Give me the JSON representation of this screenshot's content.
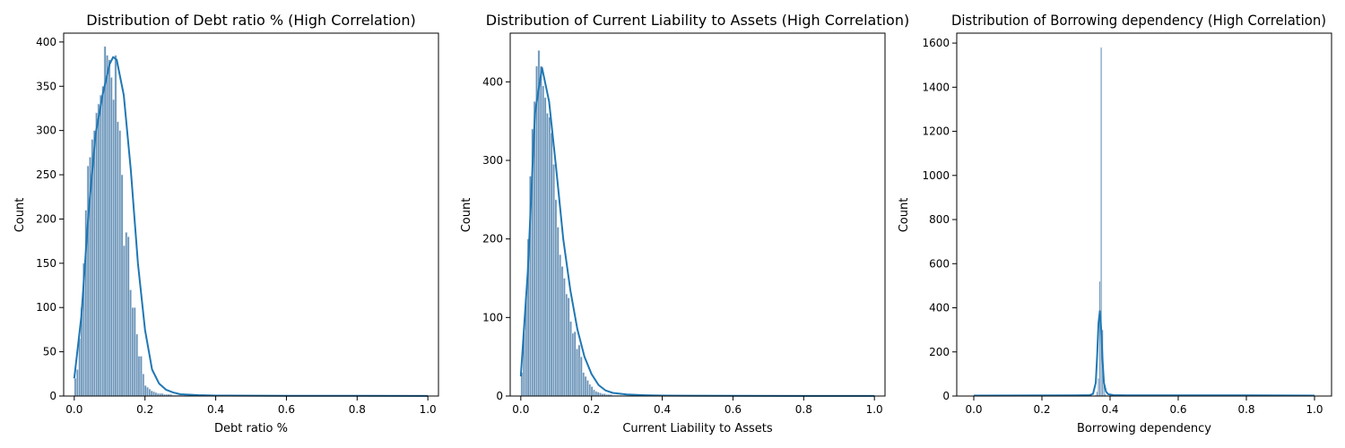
{
  "colors": {
    "bar_fill": "#6b94b8",
    "bar_edge": "#dfe9f3",
    "kde": "#1f77b4"
  },
  "chart_data": [
    {
      "type": "bar",
      "title": "Distribution of  Debt ratio % (High Correlation)",
      "xlabel": "Debt ratio %",
      "ylabel": "Count",
      "xlim": [
        -0.03,
        1.03
      ],
      "ylim": [
        0,
        410
      ],
      "xticks": [
        0.0,
        0.2,
        0.4,
        0.6,
        0.8,
        1.0
      ],
      "xtick_labels": [
        "0.0",
        "0.2",
        "0.4",
        "0.6",
        "0.8",
        "1.0"
      ],
      "yticks": [
        0,
        50,
        100,
        150,
        200,
        250,
        300,
        350,
        400
      ],
      "ytick_labels": [
        "0",
        "50",
        "100",
        "150",
        "200",
        "250",
        "300",
        "350",
        "400"
      ],
      "bin_width": 0.006,
      "bins_x": [
        0.0,
        0.006,
        0.012,
        0.018,
        0.024,
        0.03,
        0.036,
        0.042,
        0.048,
        0.054,
        0.06,
        0.066,
        0.072,
        0.078,
        0.084,
        0.09,
        0.096,
        0.102,
        0.108,
        0.114,
        0.12,
        0.126,
        0.132,
        0.138,
        0.144,
        0.15,
        0.156,
        0.162,
        0.168,
        0.174,
        0.18,
        0.186,
        0.192,
        0.198,
        0.204,
        0.21,
        0.216,
        0.222,
        0.228,
        0.234,
        0.24,
        0.246,
        0.252,
        0.258,
        0.264,
        0.27,
        0.276,
        0.282,
        0.288,
        0.294,
        0.3,
        0.31,
        0.32,
        0.33,
        0.34
      ],
      "bins_y": [
        20,
        30,
        65,
        100,
        150,
        210,
        260,
        270,
        290,
        300,
        320,
        330,
        340,
        350,
        395,
        385,
        380,
        360,
        335,
        385,
        310,
        300,
        250,
        170,
        185,
        180,
        120,
        100,
        100,
        70,
        45,
        45,
        25,
        12,
        10,
        8,
        6,
        5,
        4,
        3,
        3,
        3,
        2,
        2,
        2,
        2,
        1,
        1,
        1,
        1,
        1,
        1,
        1,
        1,
        1
      ],
      "kde_x": [
        0.0,
        0.02,
        0.04,
        0.06,
        0.08,
        0.1,
        0.11,
        0.12,
        0.14,
        0.16,
        0.18,
        0.2,
        0.22,
        0.24,
        0.26,
        0.28,
        0.3,
        0.35,
        0.4,
        0.6,
        0.8,
        1.0
      ],
      "kde_y": [
        20,
        90,
        205,
        295,
        340,
        375,
        383,
        380,
        340,
        255,
        150,
        75,
        30,
        14,
        7,
        4,
        2,
        1,
        0.5,
        0.3,
        0.2,
        0.1
      ]
    },
    {
      "type": "bar",
      "title": "Distribution of  Current Liability to Assets (High Correlation)",
      "xlabel": "Current Liability to Assets",
      "ylabel": "Count",
      "xlim": [
        -0.03,
        1.03
      ],
      "ylim": [
        0,
        462
      ],
      "xticks": [
        0.0,
        0.2,
        0.4,
        0.6,
        0.8,
        1.0
      ],
      "xtick_labels": [
        "0.0",
        "0.2",
        "0.4",
        "0.6",
        "0.8",
        "1.0"
      ],
      "yticks": [
        0,
        100,
        200,
        300,
        400
      ],
      "ytick_labels": [
        "0",
        "100",
        "200",
        "300",
        "400"
      ],
      "bin_width": 0.006,
      "bins_x": [
        0.0,
        0.006,
        0.012,
        0.018,
        0.024,
        0.03,
        0.036,
        0.042,
        0.048,
        0.054,
        0.06,
        0.066,
        0.072,
        0.078,
        0.084,
        0.09,
        0.096,
        0.102,
        0.108,
        0.114,
        0.12,
        0.126,
        0.132,
        0.138,
        0.144,
        0.15,
        0.156,
        0.162,
        0.168,
        0.174,
        0.18,
        0.186,
        0.192,
        0.198,
        0.204,
        0.21,
        0.216,
        0.222,
        0.228,
        0.234,
        0.24,
        0.246,
        0.252,
        0.258,
        0.264,
        0.27,
        0.28,
        0.29,
        0.3,
        0.32,
        0.34
      ],
      "bins_y": [
        30,
        80,
        125,
        200,
        280,
        340,
        375,
        420,
        440,
        420,
        395,
        380,
        360,
        355,
        335,
        295,
        250,
        215,
        180,
        165,
        150,
        130,
        125,
        95,
        80,
        82,
        60,
        65,
        50,
        30,
        25,
        20,
        15,
        12,
        8,
        6,
        5,
        4,
        3,
        3,
        2,
        2,
        2,
        1,
        1,
        1,
        1,
        1,
        1,
        1,
        1
      ],
      "kde_x": [
        0.0,
        0.02,
        0.04,
        0.06,
        0.08,
        0.1,
        0.12,
        0.14,
        0.16,
        0.18,
        0.2,
        0.22,
        0.24,
        0.26,
        0.3,
        0.35,
        0.4,
        0.6,
        0.8,
        1.0
      ],
      "kde_y": [
        25,
        160,
        360,
        418,
        375,
        290,
        200,
        135,
        85,
        50,
        28,
        14,
        7,
        4,
        2,
        1,
        0.5,
        0.3,
        0.2,
        0.1
      ]
    },
    {
      "type": "bar",
      "title": "Distribution of  Borrowing dependency (High Correlation)",
      "xlabel": "Borrowing dependency",
      "ylabel": "Count",
      "xlim": [
        -0.05,
        1.05
      ],
      "ylim": [
        0,
        1645
      ],
      "xticks": [
        0.0,
        0.2,
        0.4,
        0.6,
        0.8,
        1.0
      ],
      "xtick_labels": [
        "0.0",
        "0.2",
        "0.4",
        "0.6",
        "0.8",
        "1.0"
      ],
      "yticks": [
        0,
        200,
        400,
        600,
        800,
        1000,
        1200,
        1400,
        1600
      ],
      "ytick_labels": [
        "0",
        "200",
        "400",
        "600",
        "800",
        "1000",
        "1200",
        "1400",
        "1600"
      ],
      "bin_width": 0.004,
      "bins_x": [
        0.356,
        0.36,
        0.364,
        0.368,
        0.372,
        0.376,
        0.38,
        0.384,
        0.388
      ],
      "bins_y": [
        5,
        20,
        80,
        520,
        1580,
        300,
        50,
        10,
        3
      ],
      "kde_x": [
        0.0,
        0.3,
        0.34,
        0.35,
        0.358,
        0.362,
        0.366,
        0.37,
        0.374,
        0.378,
        0.382,
        0.388,
        0.395,
        0.41,
        0.45,
        0.6,
        0.8,
        1.0
      ],
      "kde_y": [
        2,
        3,
        4,
        10,
        60,
        180,
        330,
        385,
        300,
        160,
        60,
        20,
        8,
        4,
        3,
        3,
        3,
        2
      ]
    }
  ]
}
